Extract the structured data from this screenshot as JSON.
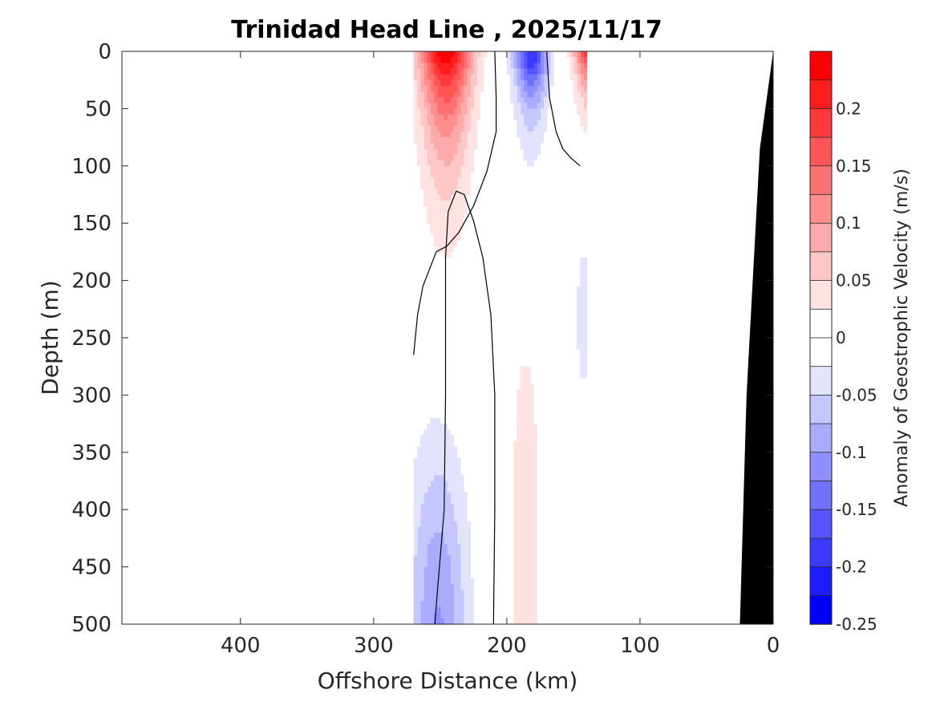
{
  "chart_data": {
    "type": "contour",
    "title": "Trinidad Head Line , 2025/11/17",
    "xlabel": "Offshore Distance (km)",
    "ylabel": "Depth (m)",
    "colorbar_label": "Anomaly of Geostrophic Velocity (m/s)",
    "xlim": [
      489,
      0
    ],
    "ylim": [
      500,
      0
    ],
    "x_reversed": true,
    "y_reversed": true,
    "xticks": [
      400,
      300,
      200,
      100,
      0
    ],
    "xtick_labels": [
      "400",
      "300",
      "200",
      "100",
      "0"
    ],
    "yticks": [
      0,
      50,
      100,
      150,
      200,
      250,
      300,
      350,
      400,
      450,
      500
    ],
    "ytick_labels": [
      "0",
      "50",
      "100",
      "150",
      "200",
      "250",
      "300",
      "350",
      "400",
      "450",
      "500"
    ],
    "colorbar": {
      "range": [
        -0.25,
        0.25
      ],
      "step": 0.025,
      "ticks": [
        0.2,
        0.15,
        0.1,
        0.05,
        0,
        -0.05,
        -0.1,
        -0.15,
        -0.2,
        -0.25
      ],
      "tick_labels": [
        "0.2",
        "0.15",
        "0.1",
        "0.05",
        "0",
        "-0.05",
        "-0.1",
        "-0.15",
        "-0.2",
        "-0.25"
      ],
      "colors_top_to_bottom": [
        "#ff0000",
        "#ff1c1c",
        "#ff3939",
        "#ff5555",
        "#ff7171",
        "#ff8e8e",
        "#ffaaaa",
        "#ffc6c6",
        "#ffe3e3",
        "#ffffff",
        "#ffffff",
        "#e3e3ff",
        "#c6c6ff",
        "#aaaaff",
        "#8e8eff",
        "#7171ff",
        "#5555ff",
        "#3939ff",
        "#1c1cff",
        "#0000ff"
      ]
    },
    "data_extent_km": [
      270,
      140
    ],
    "regions": [
      {
        "name": "offshore-jet-core",
        "sign": "positive",
        "center_km": 245,
        "peak": 0.25,
        "depth_range_m": [
          0,
          220
        ]
      },
      {
        "name": "midline-negative-core",
        "sign": "negative",
        "center_km": 183,
        "peak": -0.175,
        "depth_range_m": [
          0,
          110
        ]
      },
      {
        "name": "nearshore-positive",
        "sign": "positive",
        "center_km": 140,
        "peak": 0.2,
        "depth_range_m": [
          0,
          85
        ]
      },
      {
        "name": "deep-negative",
        "sign": "negative",
        "center_km": 250,
        "peak": -0.1,
        "depth_range_m": [
          230,
          500
        ]
      },
      {
        "name": "deep-positive",
        "sign": "positive",
        "center_km": 185,
        "peak": 0.025,
        "depth_range_m": [
          195,
          500
        ]
      },
      {
        "name": "nearshore-deep-negative",
        "sign": "negative",
        "center_km": 143,
        "peak": -0.025,
        "depth_range_m": [
          125,
          335
        ]
      }
    ],
    "zero_contours": [
      [
        [
          270,
          265
        ],
        [
          267,
          230
        ],
        [
          263,
          205
        ],
        [
          253,
          175
        ],
        [
          245,
          170
        ],
        [
          236,
          158
        ],
        [
          225,
          135
        ],
        [
          215,
          105
        ],
        [
          208,
          70
        ],
        [
          208,
          40
        ],
        [
          209,
          0
        ]
      ],
      [
        [
          210,
          500
        ],
        [
          209,
          400
        ],
        [
          209,
          300
        ],
        [
          212,
          230
        ],
        [
          218,
          180
        ],
        [
          225,
          148
        ],
        [
          232,
          125
        ],
        [
          238,
          122
        ],
        [
          244,
          140
        ],
        [
          246,
          180
        ],
        [
          246,
          300
        ],
        [
          247,
          400
        ],
        [
          252,
          470
        ],
        [
          254,
          500
        ]
      ],
      [
        [
          170,
          0
        ],
        [
          168,
          40
        ],
        [
          163,
          70
        ],
        [
          158,
          85
        ],
        [
          152,
          93
        ],
        [
          145,
          100
        ]
      ]
    ],
    "bathymetry": [
      [
        0,
        0
      ],
      [
        10,
        85
      ],
      [
        20,
        300
      ],
      [
        25,
        500
      ],
      [
        0,
        500
      ]
    ]
  }
}
